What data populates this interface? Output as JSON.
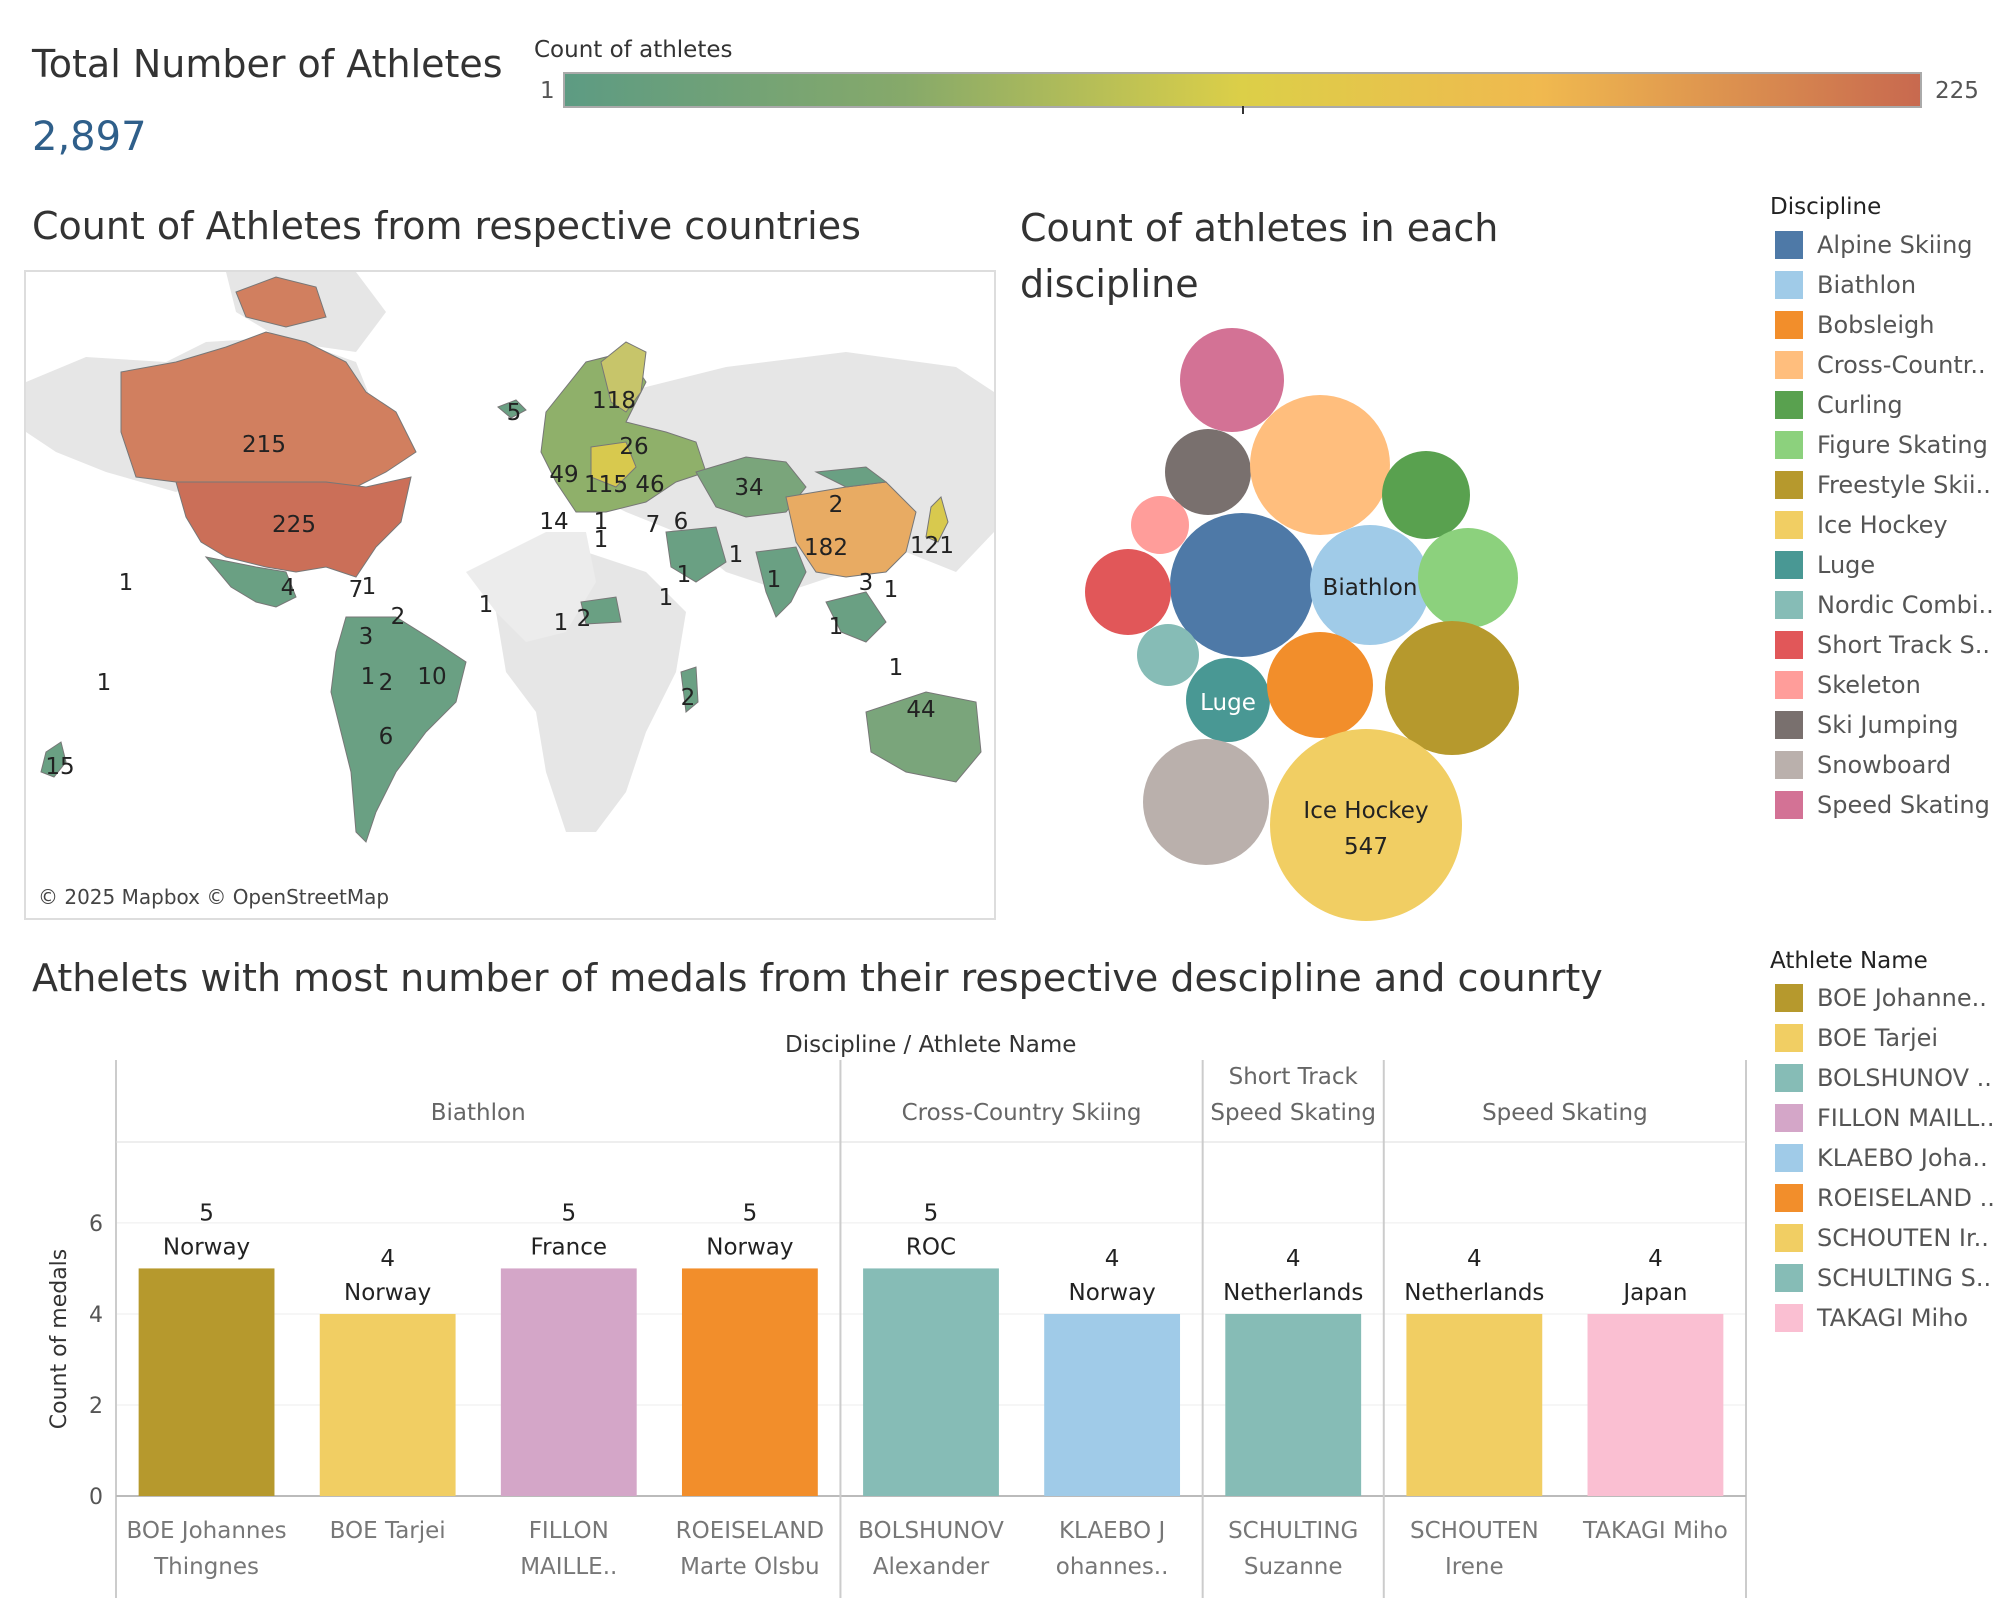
{
  "kpi": {
    "title": "Total Number of Athletes",
    "value": "2,897"
  },
  "color_scale": {
    "title": "Count of athletes",
    "min_label": "1",
    "max_label": "225",
    "min": 1,
    "max": 225
  },
  "map": {
    "title": "Count of Athletes from respective countries",
    "attribution": "© 2025 Mapbox © OpenStreetMap",
    "labels": [
      "215",
      "225",
      "4",
      "7",
      "1",
      "3",
      "2",
      "1",
      "2",
      "10",
      "6",
      "1",
      "15",
      "5",
      "118",
      "26",
      "49",
      "115",
      "46",
      "14",
      "1",
      "1",
      "7",
      "6",
      "34",
      "2",
      "182",
      "121",
      "3",
      "1",
      "1",
      "1",
      "1",
      "1",
      "1",
      "2",
      "1",
      "44",
      "2",
      "1",
      "1",
      "1"
    ]
  },
  "discipline_chart": {
    "title": "Count of athletes in each discipline",
    "legend_title": "Discipline",
    "legend": [
      {
        "label": "Alpine Skiing",
        "color": "#4e79a7"
      },
      {
        "label": "Biathlon",
        "color": "#a0cbe8"
      },
      {
        "label": "Bobsleigh",
        "color": "#f28e2b"
      },
      {
        "label": "Cross-Countr..",
        "color": "#ffbe7d"
      },
      {
        "label": "Curling",
        "color": "#59a14f"
      },
      {
        "label": "Figure Skating",
        "color": "#8cd17d"
      },
      {
        "label": "Freestyle Skii..",
        "color": "#b6992d"
      },
      {
        "label": "Ice Hockey",
        "color": "#f1ce63"
      },
      {
        "label": "Luge",
        "color": "#499894"
      },
      {
        "label": "Nordic Combi..",
        "color": "#86bcb6"
      },
      {
        "label": "Short Track S..",
        "color": "#e15759"
      },
      {
        "label": "Skeleton",
        "color": "#ff9d9a"
      },
      {
        "label": "Ski Jumping",
        "color": "#79706e"
      },
      {
        "label": "Snowboard",
        "color": "#bab0ac"
      },
      {
        "label": "Speed Skating",
        "color": "#d37295"
      }
    ],
    "bubble_labels": {
      "biathlon": "Biathlon",
      "luge": "Luge",
      "ice_hockey": "Ice Hockey",
      "ice_hockey_value": "547"
    }
  },
  "medals_chart": {
    "title": "Athelets with most number of medals from their respective descipline and counrty",
    "header": "Discipline  /  Athlete Name",
    "legend_title": "Athlete Name",
    "legend": [
      {
        "label": "BOE Johanne..",
        "color": "#b6992d"
      },
      {
        "label": "BOE Tarjei",
        "color": "#f1ce63"
      },
      {
        "label": "BOLSHUNOV ..",
        "color": "#86bcb6"
      },
      {
        "label": "FILLON MAILL..",
        "color": "#d4a6c8"
      },
      {
        "label": "KLAEBO Joha..",
        "color": "#a0cbe8"
      },
      {
        "label": "ROEISELAND ..",
        "color": "#f28e2b"
      },
      {
        "label": "SCHOUTEN Ir..",
        "color": "#f1ce63"
      },
      {
        "label": "SCHULTING S..",
        "color": "#86bcb6"
      },
      {
        "label": "TAKAGI Miho",
        "color": "#fabfd2"
      }
    ]
  },
  "chart_data": {
    "type": "bar",
    "ylabel": "Count of medals",
    "ylim": [
      0,
      7
    ],
    "yticks": [
      "0",
      "2",
      "4",
      "6"
    ],
    "groups": [
      {
        "label": "Biathlon",
        "count": 4
      },
      {
        "label": "Cross-Country Skiing",
        "count": 2
      },
      {
        "label": "Short Track\nSpeed Skating",
        "count": 1
      },
      {
        "label": "Speed Skating",
        "count": 2
      }
    ],
    "bars": [
      {
        "name": "BOE Johannes\nThingnes",
        "value": 5,
        "value_label": "5",
        "country": "Norway",
        "color": "#b6992d"
      },
      {
        "name": "BOE Tarjei",
        "value": 4,
        "value_label": "4",
        "country": "Norway",
        "color": "#f1ce63"
      },
      {
        "name": "FILLON\nMAILLE..",
        "value": 5,
        "value_label": "5",
        "country": "France",
        "color": "#d4a6c8"
      },
      {
        "name": "ROEISELAND\nMarte Olsbu",
        "value": 5,
        "value_label": "5",
        "country": "Norway",
        "color": "#f28e2b"
      },
      {
        "name": "BOLSHUNOV\nAlexander",
        "value": 5,
        "value_label": "5",
        "country": "ROC",
        "color": "#86bcb6"
      },
      {
        "name": "KLAEBO J\nohannes..",
        "value": 4,
        "value_label": "4",
        "country": "Norway",
        "color": "#a0cbe8"
      },
      {
        "name": "SCHULTING\nSuzanne",
        "value": 4,
        "value_label": "4",
        "country": "Netherlands",
        "color": "#86bcb6"
      },
      {
        "name": "SCHOUTEN\nIrene",
        "value": 4,
        "value_label": "4",
        "country": "Netherlands",
        "color": "#f1ce63"
      },
      {
        "name": "TAKAGI Miho",
        "value": 4,
        "value_label": "4",
        "country": "Japan",
        "color": "#fabfd2"
      }
    ]
  }
}
